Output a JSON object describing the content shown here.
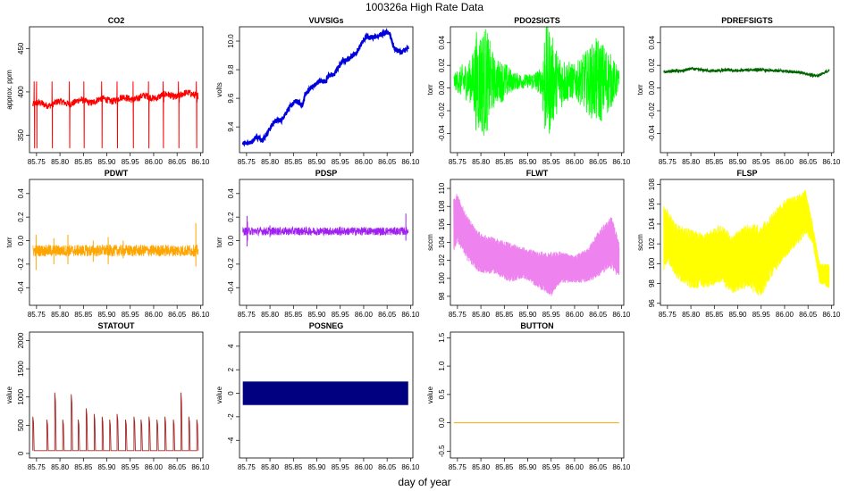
{
  "figure": {
    "title": "100326a   High Rate Data",
    "xlabel": "day of year"
  },
  "chart_data": [
    {
      "type": "line",
      "title": "CO2",
      "ylabel": "approx. ppm",
      "color": "#ff0000",
      "xlim": [
        85.735,
        86.105
      ],
      "ylim": [
        330,
        475
      ],
      "yticks": [
        350,
        400,
        450
      ],
      "yticklabels": [
        "350",
        "400",
        "450"
      ],
      "xticks": [
        85.75,
        85.8,
        85.85,
        85.9,
        85.95,
        86.0,
        86.05,
        86.1
      ],
      "xticklabels": [
        "85.75",
        "85.80",
        "85.85",
        "85.90",
        "85.95",
        "86.00",
        "86.05",
        "86.10"
      ],
      "series": [
        {
          "name": "CO2",
          "gen": "co2",
          "x0": 85.742,
          "x1": 86.095,
          "base_start": 385,
          "base_end": 398,
          "band": 8,
          "spike_low": 335,
          "spike_high": 412,
          "spikes": [
            85.745,
            85.75,
            85.783,
            85.82,
            85.851,
            85.889,
            85.922,
            85.956,
            85.989,
            86.02,
            86.053,
            86.091
          ]
        }
      ]
    },
    {
      "type": "line",
      "title": "VUVSIGs",
      "ylabel": "volts",
      "color": "#0000dd",
      "xlim": [
        85.735,
        86.105
      ],
      "ylim": [
        9.22,
        10.1
      ],
      "yticks": [
        9.4,
        9.6,
        9.8,
        10.0
      ],
      "yticklabels": [
        "9.4",
        "9.6",
        "9.8",
        "10.0"
      ],
      "xticks": [
        85.75,
        85.8,
        85.85,
        85.9,
        85.95,
        86.0,
        86.05,
        86.1
      ],
      "xticklabels": [
        "85.75",
        "85.80",
        "85.85",
        "85.90",
        "85.95",
        "86.00",
        "86.05",
        "86.10"
      ],
      "series": [
        {
          "name": "VUVSIGs",
          "gen": "path",
          "x0": 85.742,
          "x1": 86.095,
          "band": 0.015,
          "x": [
            85.742,
            85.76,
            85.77,
            85.785,
            85.8,
            85.81,
            85.825,
            85.84,
            85.855,
            85.87,
            85.875,
            85.89,
            85.905,
            85.92,
            85.925,
            85.935,
            85.955,
            85.965,
            85.985,
            85.995,
            86.005,
            86.025,
            86.04,
            86.055,
            86.065,
            86.08,
            86.095
          ],
          "y": [
            9.29,
            9.29,
            9.33,
            9.31,
            9.39,
            9.44,
            9.45,
            9.53,
            9.58,
            9.55,
            9.63,
            9.68,
            9.72,
            9.72,
            9.76,
            9.76,
            9.86,
            9.87,
            9.92,
            9.98,
            10.03,
            10.03,
            10.05,
            10.06,
            9.95,
            9.92,
            9.95
          ]
        }
      ]
    },
    {
      "type": "line",
      "title": "PDO2SIGTS",
      "ylabel": "torr",
      "color": "#00ff00",
      "xlim": [
        85.735,
        86.105
      ],
      "ylim": [
        -0.057,
        0.054
      ],
      "yticks": [
        -0.04,
        -0.02,
        0.0,
        0.02,
        0.04
      ],
      "yticklabels": [
        "-0.04",
        "-0.02",
        "0.00",
        "0.02",
        "0.04"
      ],
      "xticks": [
        85.75,
        85.8,
        85.85,
        85.9,
        85.95,
        86.0,
        86.05,
        86.1
      ],
      "xticklabels": [
        "85.75",
        "85.80",
        "85.85",
        "85.90",
        "85.95",
        "86.00",
        "86.05",
        "86.10"
      ],
      "series": [
        {
          "name": "PDO2SIGTS",
          "gen": "noise",
          "x0": 85.742,
          "x1": 86.095,
          "center": 0.006,
          "env_x": [
            85.742,
            85.76,
            85.78,
            85.79,
            85.81,
            85.83,
            85.85,
            85.87,
            85.9,
            85.93,
            85.935,
            85.945,
            85.96,
            85.98,
            86.0,
            86.02,
            86.05,
            86.07,
            86.095
          ],
          "env_a": [
            0.006,
            0.015,
            0.02,
            0.045,
            0.05,
            0.02,
            0.018,
            0.008,
            0.006,
            0.012,
            0.05,
            0.05,
            0.03,
            0.02,
            0.015,
            0.025,
            0.04,
            0.03,
            0.01
          ]
        }
      ]
    },
    {
      "type": "line",
      "title": "PDREFSIGTS",
      "ylabel": "torr",
      "color": "#006400",
      "xlim": [
        85.735,
        86.105
      ],
      "ylim": [
        -0.057,
        0.054
      ],
      "yticks": [
        -0.04,
        -0.02,
        0.0,
        0.02,
        0.04
      ],
      "yticklabels": [
        "-0.04",
        "-0.02",
        "0.00",
        "0.02",
        "0.04"
      ],
      "xticks": [
        85.75,
        85.8,
        85.85,
        85.9,
        85.95,
        86.0,
        86.05,
        86.1
      ],
      "xticklabels": [
        "85.75",
        "85.80",
        "85.85",
        "85.90",
        "85.95",
        "86.00",
        "86.05",
        "86.10"
      ],
      "series": [
        {
          "name": "PDREFSIGTS",
          "gen": "path",
          "x0": 85.742,
          "x1": 86.095,
          "band": 0.0012,
          "x": [
            85.742,
            85.76,
            85.78,
            85.8,
            85.82,
            85.85,
            85.88,
            85.9,
            85.92,
            85.95,
            85.98,
            86.0,
            86.03,
            86.05,
            86.07,
            86.085,
            86.095
          ],
          "y": [
            0.014,
            0.015,
            0.015,
            0.017,
            0.016,
            0.015,
            0.016,
            0.015,
            0.016,
            0.016,
            0.015,
            0.015,
            0.014,
            0.012,
            0.011,
            0.013,
            0.016
          ]
        }
      ]
    },
    {
      "type": "line",
      "title": "PDWT",
      "ylabel": "torr",
      "color": "#ffa500",
      "xlim": [
        85.735,
        86.105
      ],
      "ylim": [
        -0.55,
        0.52
      ],
      "yticks": [
        -0.4,
        -0.2,
        0.0,
        0.2,
        0.4
      ],
      "yticklabels": [
        "-0.4",
        "-0.2",
        "0.0",
        "0.2",
        "0.4"
      ],
      "xticks": [
        85.75,
        85.8,
        85.85,
        85.9,
        85.95,
        86.0,
        86.05,
        86.1
      ],
      "xticklabels": [
        "85.75",
        "85.80",
        "85.85",
        "85.90",
        "85.95",
        "86.00",
        "86.05",
        "86.10"
      ],
      "series": [
        {
          "name": "PDWT",
          "gen": "noise",
          "x0": 85.742,
          "x1": 86.095,
          "center": -0.085,
          "env_x": [
            85.742,
            86.095
          ],
          "env_a": [
            0.05,
            0.05
          ],
          "spikes": [
            [
              85.749,
              -0.25,
              0.05
            ],
            [
              85.787,
              -0.2,
              0.02
            ],
            [
              85.817,
              -0.2,
              0.05
            ],
            [
              85.871,
              -0.18,
              0.0
            ],
            [
              85.903,
              -0.2,
              0.03
            ],
            [
              85.935,
              -0.15,
              0.0
            ],
            [
              86.09,
              -0.22,
              0.15
            ]
          ]
        }
      ]
    },
    {
      "type": "line",
      "title": "PDSP",
      "ylabel": "torr",
      "color": "#a020f0",
      "xlim": [
        85.735,
        86.105
      ],
      "ylim": [
        -0.55,
        0.52
      ],
      "yticks": [
        -0.4,
        -0.2,
        0.0,
        0.2,
        0.4
      ],
      "yticklabels": [
        "-0.4",
        "-0.2",
        "0.0",
        "0.2",
        "0.4"
      ],
      "xticks": [
        85.75,
        85.8,
        85.85,
        85.9,
        85.95,
        86.0,
        86.05,
        86.1
      ],
      "xticklabels": [
        "85.75",
        "85.80",
        "85.85",
        "85.90",
        "85.95",
        "86.00",
        "86.05",
        "86.10"
      ],
      "series": [
        {
          "name": "PDSP",
          "gen": "noise",
          "x0": 85.742,
          "x1": 86.095,
          "center": 0.08,
          "env_x": [
            85.742,
            86.095
          ],
          "env_a": [
            0.035,
            0.035
          ],
          "spikes": [
            [
              85.751,
              -0.05,
              0.21
            ],
            [
              85.752,
              0.0,
              0.16
            ],
            [
              86.09,
              0.0,
              0.23
            ],
            [
              85.8,
              0.03,
              0.13
            ],
            [
              85.95,
              0.04,
              0.12
            ]
          ]
        }
      ]
    },
    {
      "type": "line",
      "title": "FLWT",
      "ylabel": "sccm",
      "color": "#ee82ee",
      "xlim": [
        85.735,
        86.105
      ],
      "ylim": [
        97,
        111
      ],
      "yticks": [
        98,
        100,
        102,
        104,
        106,
        108,
        110
      ],
      "yticklabels": [
        "98",
        "100",
        "102",
        "104",
        "106",
        "108",
        "110"
      ],
      "xticks": [
        85.75,
        85.8,
        85.85,
        85.9,
        85.95,
        86.0,
        86.05,
        86.1
      ],
      "xticklabels": [
        "85.75",
        "85.80",
        "85.85",
        "85.90",
        "85.95",
        "86.00",
        "86.05",
        "86.10"
      ],
      "series": [
        {
          "name": "FLWT",
          "gen": "band",
          "x0": 85.742,
          "x1": 86.095,
          "x": [
            85.742,
            85.75,
            85.77,
            85.8,
            85.83,
            85.86,
            85.89,
            85.92,
            85.95,
            85.97,
            86.0,
            86.03,
            86.06,
            86.08,
            86.095
          ],
          "lo": [
            103,
            104,
            102,
            100.5,
            100.5,
            99.5,
            100,
            99,
            98,
            99.5,
            99.5,
            99.5,
            100.5,
            101,
            100
          ],
          "hi": [
            109,
            109.5,
            107,
            105,
            104.5,
            104,
            103.5,
            103,
            103,
            103,
            102.5,
            103.5,
            106,
            107,
            104
          ]
        }
      ]
    },
    {
      "type": "line",
      "title": "FLSP",
      "ylabel": "sccm",
      "color": "#ffff00",
      "xlim": [
        85.735,
        86.105
      ],
      "ylim": [
        95.8,
        108.5
      ],
      "yticks": [
        96,
        98,
        100,
        102,
        104,
        106,
        108
      ],
      "yticklabels": [
        "96",
        "98",
        "100",
        "102",
        "104",
        "106",
        "108"
      ],
      "xticks": [
        85.75,
        85.8,
        85.85,
        85.9,
        85.95,
        86.0,
        86.05,
        86.1
      ],
      "xticklabels": [
        "85.75",
        "85.80",
        "85.85",
        "85.90",
        "85.95",
        "86.00",
        "86.05",
        "86.10"
      ],
      "series": [
        {
          "name": "FLSP",
          "gen": "band",
          "x0": 85.742,
          "x1": 86.095,
          "x": [
            85.742,
            85.75,
            85.77,
            85.8,
            85.83,
            85.86,
            85.89,
            85.92,
            85.95,
            85.97,
            86.0,
            86.03,
            86.045,
            86.06,
            86.075,
            86.095
          ],
          "lo": [
            99,
            100,
            98.5,
            97.5,
            97.5,
            98,
            97,
            97.5,
            96.5,
            98.5,
            100.5,
            102,
            103,
            102,
            98,
            97.5
          ],
          "hi": [
            106,
            105.5,
            104,
            103.5,
            103,
            104,
            103,
            104,
            104,
            105,
            106.5,
            107,
            107.5,
            104,
            100,
            100
          ]
        }
      ]
    },
    {
      "type": "line",
      "title": "STATOUT",
      "ylabel": "value",
      "color": "#a52a2a",
      "xlim": [
        85.735,
        86.105
      ],
      "ylim": [
        -80,
        2150
      ],
      "yticks": [
        0,
        500,
        1000,
        1500,
        2000
      ],
      "yticklabels": [
        "0",
        "500",
        "1000",
        "1500",
        "2000"
      ],
      "xticks": [
        85.75,
        85.8,
        85.85,
        85.9,
        85.95,
        86.0,
        86.05,
        86.1
      ],
      "xticklabels": [
        "85.75",
        "85.80",
        "85.85",
        "85.90",
        "85.95",
        "86.00",
        "86.05",
        "86.10"
      ],
      "series": [
        {
          "name": "STATOUT",
          "gen": "status",
          "x0": 85.742,
          "x1": 86.095,
          "base": 50,
          "pulses": [
            [
              85.742,
              650
            ],
            [
              85.772,
              600
            ],
            [
              85.789,
              1080
            ],
            [
              85.806,
              600
            ],
            [
              85.824,
              1050
            ],
            [
              85.839,
              600
            ],
            [
              85.856,
              800
            ],
            [
              85.873,
              700
            ],
            [
              85.89,
              650
            ],
            [
              85.906,
              600
            ],
            [
              85.922,
              700
            ],
            [
              85.94,
              600
            ],
            [
              85.958,
              650
            ],
            [
              85.973,
              600
            ],
            [
              85.99,
              650
            ],
            [
              86.007,
              600
            ],
            [
              86.024,
              650
            ],
            [
              86.042,
              600
            ],
            [
              86.058,
              1080
            ],
            [
              86.075,
              650
            ],
            [
              86.092,
              600
            ]
          ]
        }
      ]
    },
    {
      "type": "bar",
      "title": "POSNEG",
      "ylabel": "value",
      "color": "#000080",
      "xlim": [
        85.735,
        86.105
      ],
      "ylim": [
        -5.5,
        5.2
      ],
      "yticks": [
        -4,
        -2,
        0,
        2,
        4
      ],
      "yticklabels": [
        "-4",
        "-2",
        "0",
        "2",
        "4"
      ],
      "xticks": [
        85.75,
        85.8,
        85.85,
        85.9,
        85.95,
        86.0,
        86.05,
        86.1
      ],
      "xticklabels": [
        "85.75",
        "85.80",
        "85.85",
        "85.90",
        "85.95",
        "86.00",
        "86.05",
        "86.10"
      ],
      "series": [
        {
          "name": "POSNEG",
          "gen": "fillrange",
          "x0": 85.742,
          "x1": 86.095,
          "lo": -1,
          "hi": 1
        }
      ]
    },
    {
      "type": "line",
      "title": "BUTTON",
      "ylabel": "value",
      "color": "#ffa500",
      "xlim": [
        85.735,
        86.105
      ],
      "ylim": [
        -0.62,
        1.6
      ],
      "yticks": [
        -0.5,
        0.0,
        0.5,
        1.0,
        1.5
      ],
      "yticklabels": [
        "-0.5",
        "0.0",
        "0.5",
        "1.0",
        "1.5"
      ],
      "xticks": [
        85.75,
        85.8,
        85.85,
        85.9,
        85.95,
        86.0,
        86.05,
        86.1
      ],
      "xticklabels": [
        "85.75",
        "85.80",
        "85.85",
        "85.90",
        "85.95",
        "86.00",
        "86.05",
        "86.10"
      ],
      "series": [
        {
          "name": "BUTTON",
          "gen": "const",
          "x0": 85.742,
          "x1": 86.095,
          "value": 0
        }
      ]
    }
  ]
}
